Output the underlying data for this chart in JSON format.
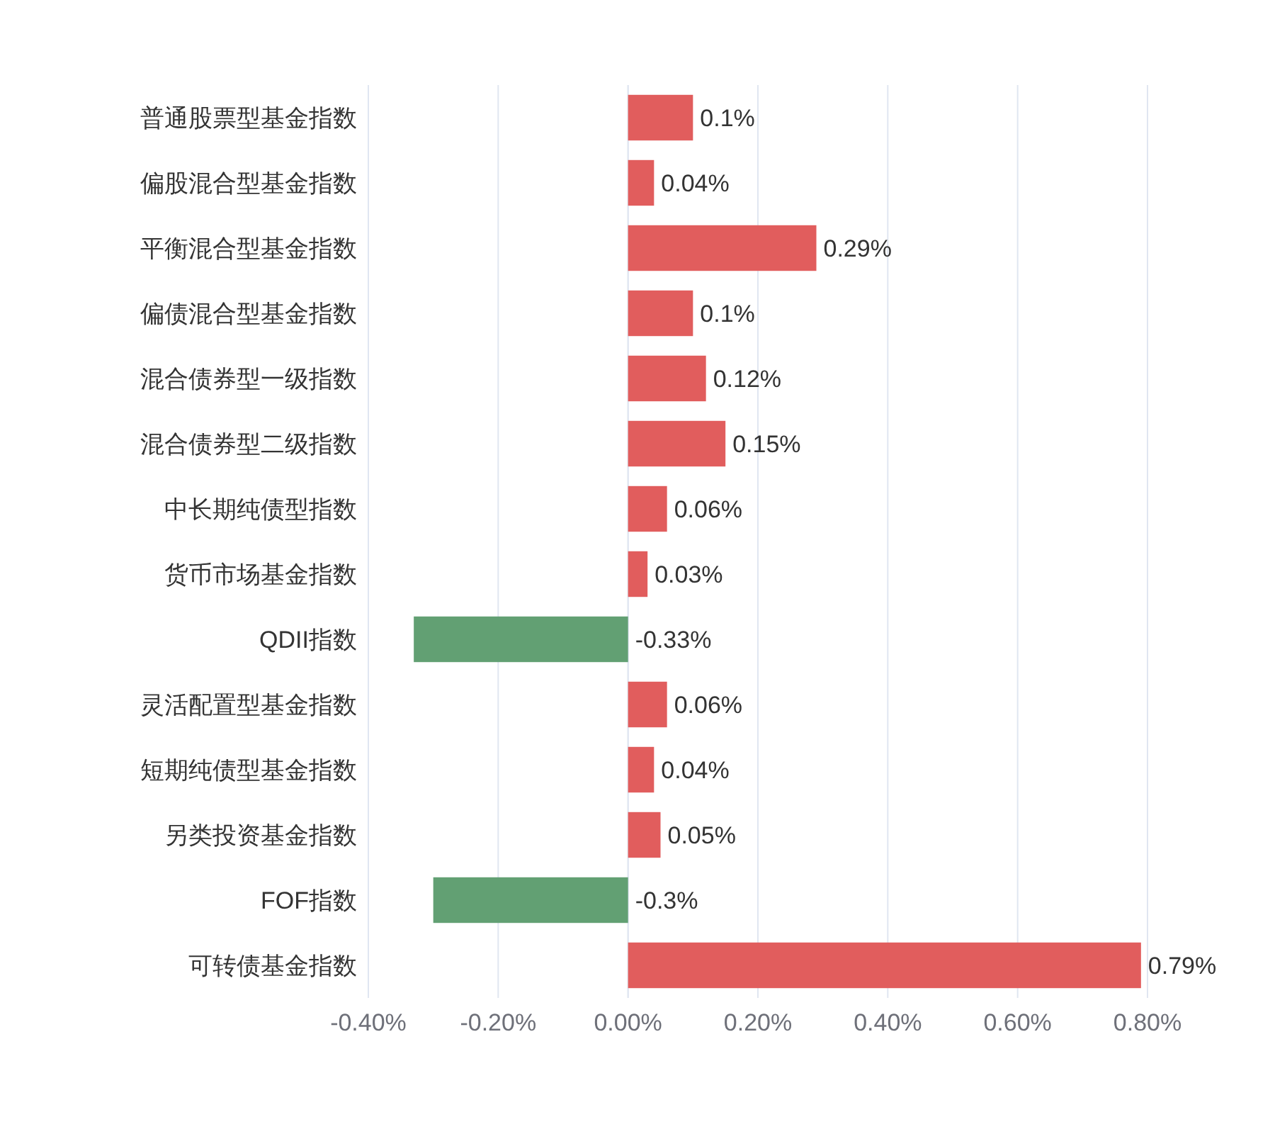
{
  "chart_data": {
    "type": "bar",
    "orientation": "horizontal",
    "categories": [
      "普通股票型基金指数",
      "偏股混合型基金指数",
      "平衡混合型基金指数",
      "偏债混合型基金指数",
      "混合债券型一级指数",
      "混合债券型二级指数",
      "中长期纯债型指数",
      "货币市场基金指数",
      "QDII指数",
      "灵活配置型基金指数",
      "短期纯债型基金指数",
      "另类投资基金指数",
      "FOF指数",
      "可转债基金指数"
    ],
    "values": [
      0.1,
      0.04,
      0.29,
      0.1,
      0.12,
      0.15,
      0.06,
      0.03,
      -0.33,
      0.06,
      0.04,
      0.05,
      -0.3,
      0.79
    ],
    "value_labels": [
      "0.1%",
      "0.04%",
      "0.29%",
      "0.1%",
      "0.12%",
      "0.15%",
      "0.06%",
      "0.03%",
      "-0.33%",
      "0.06%",
      "0.04%",
      "0.05%",
      "-0.3%",
      "0.79%"
    ],
    "colors": [
      "#e15d5d",
      "#e15d5d",
      "#e15d5d",
      "#e15d5d",
      "#e15d5d",
      "#e15d5d",
      "#e15d5d",
      "#e15d5d",
      "#62a073",
      "#e15d5d",
      "#e15d5d",
      "#e15d5d",
      "#62a073",
      "#e15d5d"
    ],
    "xlim": [
      -0.4,
      0.8
    ],
    "xticks": [
      {
        "value": -0.4,
        "label": "-0.40%"
      },
      {
        "value": -0.2,
        "label": "-0.20%"
      },
      {
        "value": 0,
        "label": "0.00%"
      },
      {
        "value": 0.2,
        "label": "0.20%"
      },
      {
        "value": 0.4,
        "label": "0.40%"
      },
      {
        "value": 0.6,
        "label": "0.60%"
      },
      {
        "value": 0.8,
        "label": "0.80%"
      }
    ],
    "grid": "x"
  }
}
